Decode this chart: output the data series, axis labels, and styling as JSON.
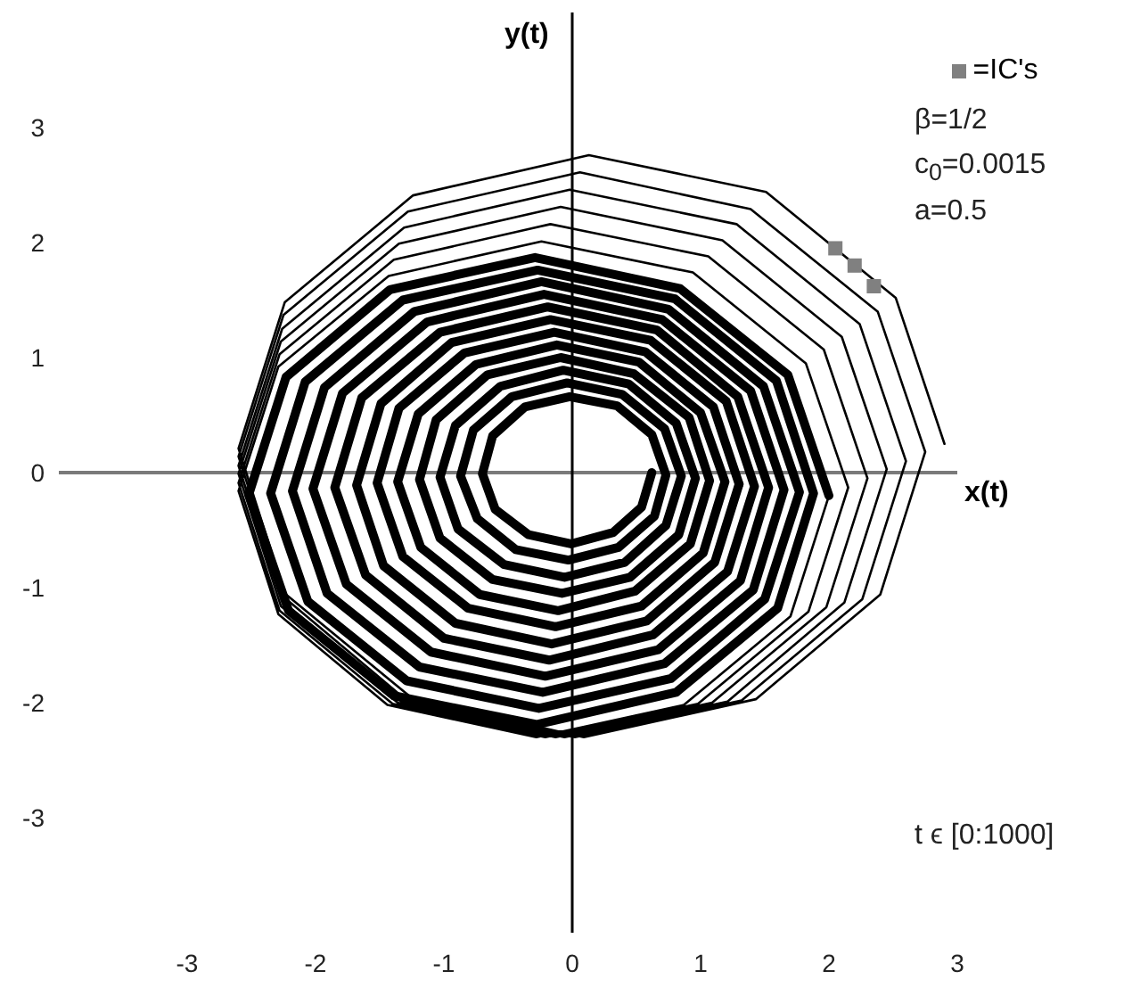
{
  "chart_data": {
    "type": "line",
    "xlabel": "x(t)",
    "ylabel": "y(t)",
    "xlim": [
      -4,
      3
    ],
    "ylim": [
      -4,
      4
    ],
    "xticks": [
      -3,
      -2,
      -1,
      0,
      1,
      2,
      3
    ],
    "yticks": [
      -3,
      -2,
      -1,
      0,
      1,
      2,
      3
    ],
    "legend": "top right",
    "annotations": [
      "β=1/2",
      "c$_{0}$=0.0015",
      "a=0.5",
      "t ϵ [0:1000]"
    ],
    "series": [
      {
        "color": "#000000",
        "x": [
          2.9,
          2.52,
          1.51,
          0.13,
          -1.24,
          -2.24,
          -2.6,
          -2.24,
          -1.25,
          0.09,
          1.43,
          2.4,
          2.75,
          2.38,
          1.39,
          0.06,
          -1.28,
          -2.25,
          -2.6,
          -2.25,
          -1.29,
          0.02,
          1.32,
          2.26,
          2.6,
          2.24,
          1.28,
          -0.02,
          -1.31,
          -2.26,
          -2.6,
          -2.26,
          -1.33,
          -0.06,
          1.21,
          2.12,
          2.45,
          2.1,
          1.17,
          -0.09,
          -1.35,
          -2.27,
          -2.6,
          -2.27,
          -1.36,
          -0.13,
          1.09,
          1.98,
          2.3,
          1.96,
          1.06,
          -0.17,
          -1.39,
          -2.28,
          -2.6,
          -2.28,
          -1.4,
          -0.21,
          0.98,
          1.84,
          2.15,
          1.82,
          0.94,
          -0.24,
          -1.43,
          -2.29,
          -2.6,
          -2.29,
          -1.44,
          -0.28,
          0.87,
          1.7,
          2.0
        ],
        "values": [
          0.25,
          1.52,
          2.44,
          2.76,
          2.41,
          1.48,
          0.21,
          -1.05,
          -1.96,
          -2.3,
          -1.97,
          -1.06,
          0.18,
          1.4,
          2.29,
          2.61,
          2.27,
          1.37,
          0.14,
          -1.08,
          -1.98,
          -2.3,
          -1.98,
          -1.1,
          0.1,
          1.29,
          2.16,
          2.46,
          2.13,
          1.25,
          0.06,
          -1.12,
          -1.99,
          -2.3,
          -1.99,
          -1.13,
          0.03,
          1.18,
          2.02,
          2.31,
          1.99,
          1.14,
          -0.01,
          -1.16,
          -2.0,
          -2.3,
          -2.0,
          -1.17,
          -0.05,
          1.07,
          1.88,
          2.16,
          1.85,
          1.03,
          -0.09,
          -1.2,
          -2.01,
          -2.3,
          -2.01,
          -1.21,
          -0.13,
          0.95,
          1.74,
          2.01,
          1.71,
          0.92,
          -0.16,
          -1.23,
          -2.02,
          -2.3,
          -2.02,
          -1.25,
          -0.2
        ]
      },
      {
        "color": "#000000",
        "x": [
          2.0,
          1.68,
          0.84,
          -0.29,
          -1.42,
          -2.23,
          -2.52,
          -2.21,
          -1.39,
          -0.28,
          0.81,
          1.6,
          1.88,
          1.59,
          0.8,
          -0.27,
          -1.32,
          -2.08,
          -2.35,
          -2.06,
          -1.29,
          -0.26,
          0.77,
          1.5,
          1.77,
          1.49,
          0.75,
          -0.24,
          -1.23,
          -1.93,
          -2.18,
          -1.91,
          -1.19,
          -0.23,
          0.72,
          1.41,
          1.65,
          1.39,
          0.7,
          -0.22,
          -1.13,
          -1.79,
          -2.02,
          -1.76,
          -1.1,
          -0.21,
          0.67,
          1.31,
          1.53,
          1.29,
          0.66,
          -0.19,
          -1.03,
          -1.64,
          -1.85,
          -1.61,
          -1.0,
          -0.18,
          0.63,
          1.21,
          1.42,
          1.2,
          0.61,
          -0.17,
          -0.94,
          -1.49,
          -1.68,
          -1.47,
          -0.91,
          -0.16,
          0.58,
          1.11,
          1.3
        ],
        "values": [
          -0.2,
          0.85,
          1.6,
          1.87,
          1.59,
          0.83,
          -0.19,
          -1.2,
          -1.94,
          -2.19,
          -1.91,
          -1.18,
          -0.18,
          0.8,
          1.51,
          1.76,
          1.5,
          0.79,
          -0.18,
          -1.12,
          -1.81,
          -2.05,
          -1.79,
          -1.1,
          -0.17,
          0.75,
          1.42,
          1.66,
          1.4,
          0.74,
          -0.16,
          -1.05,
          -1.69,
          -1.91,
          -1.66,
          -1.02,
          -0.15,
          0.71,
          1.33,
          1.55,
          1.31,
          0.69,
          -0.14,
          -0.97,
          -1.56,
          -1.77,
          -1.54,
          -0.94,
          -0.13,
          0.66,
          1.24,
          1.44,
          1.22,
          0.65,
          -0.13,
          -0.89,
          -1.44,
          -1.63,
          -1.41,
          -0.86,
          -0.12,
          0.62,
          1.15,
          1.33,
          1.13,
          0.6,
          -0.11,
          -0.81,
          -1.31,
          -1.49,
          -1.29,
          -0.78,
          -0.1
        ]
      },
      {
        "color": "#000000",
        "x": [
          1.3,
          1.1,
          0.57,
          -0.14,
          -0.84,
          -1.35,
          -1.52,
          -1.32,
          -0.81,
          -0.13,
          0.54,
          1.02,
          1.19,
          1.0,
          0.52,
          -0.12,
          -0.75,
          -1.2,
          -1.36,
          -1.18,
          -0.72,
          -0.11,
          0.49,
          0.92,
          1.07,
          0.91,
          0.48,
          -0.09,
          -0.66,
          -1.06,
          -1.19,
          -1.03,
          -0.62,
          -0.08,
          0.45,
          0.83,
          0.96,
          0.81,
          0.44,
          -0.07,
          -0.56,
          -0.91,
          -1.03,
          -0.89,
          -0.53,
          -0.06,
          0.41,
          0.73,
          0.85,
          0.72,
          0.39,
          -0.04,
          -0.47,
          -0.77,
          -0.87,
          -0.74,
          -0.44,
          -0.03,
          0.36,
          0.64,
          0.73,
          0.62,
          0.35,
          -0.02,
          -0.37,
          -0.62,
          -0.7,
          -0.6,
          -0.34,
          -0.01,
          0.32,
          0.54,
          0.62
        ],
        "values": [
          -0.1,
          0.57,
          1.05,
          1.22,
          1.04,
          0.56,
          -0.09,
          -0.73,
          -1.18,
          -1.34,
          -1.16,
          -0.7,
          -0.08,
          0.52,
          0.96,
          1.11,
          0.94,
          0.51,
          -0.08,
          -0.65,
          -1.06,
          -1.2,
          -1.03,
          -0.62,
          -0.07,
          0.48,
          0.86,
          1.0,
          0.85,
          0.46,
          -0.06,
          -0.57,
          -0.93,
          -1.05,
          -0.91,
          -0.54,
          -0.05,
          0.43,
          0.77,
          0.89,
          0.75,
          0.41,
          -0.04,
          -0.49,
          -0.8,
          -0.91,
          -0.78,
          -0.46,
          -0.03,
          0.38,
          0.68,
          0.78,
          0.66,
          0.37,
          -0.03,
          -0.4,
          -0.67,
          -0.76,
          -0.65,
          -0.38,
          -0.02,
          0.33,
          0.58,
          0.66,
          0.57,
          0.32,
          -0.01,
          -0.32,
          -0.54,
          -0.62,
          -0.52,
          -0.3,
          0
        ]
      },
      {
        "name": "=IC's",
        "type": "scatter",
        "marker": "square",
        "color": "#808080",
        "x": [
          2.05,
          2.2,
          2.35
        ],
        "values": [
          1.95,
          1.8,
          1.62
        ]
      }
    ]
  }
}
